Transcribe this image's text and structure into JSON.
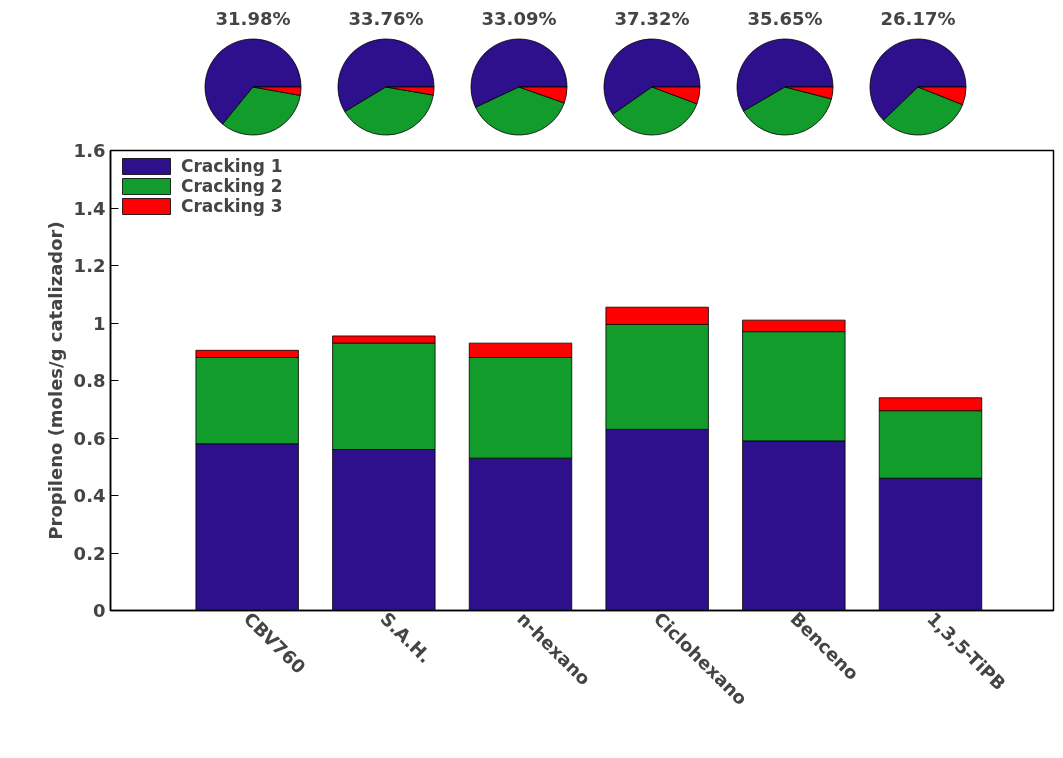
{
  "chart_data": [
    {
      "type": "pie",
      "title": "31.98%",
      "categories": [
        null,
        null,
        null
      ],
      "values": [
        64.1,
        33.1,
        2.8
      ],
      "colors": [
        "#2e0f8c",
        "#119c2c",
        "#ff0000"
      ]
    },
    {
      "type": "pie",
      "title": "33.76%",
      "categories": [
        null,
        null,
        null
      ],
      "values": [
        58.6,
        38.7,
        2.7
      ],
      "colors": [
        "#2e0f8c",
        "#119c2c",
        "#ff0000"
      ]
    },
    {
      "type": "pie",
      "title": "33.09%",
      "categories": [
        null,
        null,
        null
      ],
      "values": [
        57.0,
        37.6,
        5.4
      ],
      "colors": [
        "#2e0f8c",
        "#119c2c",
        "#ff0000"
      ]
    },
    {
      "type": "pie",
      "title": "37.32%",
      "categories": [
        null,
        null,
        null
      ],
      "values": [
        59.7,
        34.6,
        5.7
      ],
      "colors": [
        "#2e0f8c",
        "#119c2c",
        "#ff0000"
      ]
    },
    {
      "type": "pie",
      "title": "35.65%",
      "categories": [
        null,
        null,
        null
      ],
      "values": [
        58.4,
        37.6,
        4.0
      ],
      "colors": [
        "#2e0f8c",
        "#119c2c",
        "#ff0000"
      ]
    },
    {
      "type": "pie",
      "title": "26.17%",
      "categories": [
        null,
        null,
        null
      ],
      "values": [
        62.2,
        31.8,
        6.0
      ],
      "colors": [
        "#2e0f8c",
        "#119c2c",
        "#ff0000"
      ]
    },
    {
      "type": "bar",
      "stacked": true,
      "ylabel": "Propileno (moles/g catalizador)",
      "categories": [
        "CBV760",
        "S.A.H.",
        "n-hexano",
        "Ciclohexano",
        "Benceno",
        "1,3,5-TiPB"
      ],
      "series": [
        {
          "name": "Cracking 1",
          "color": "#2e0f8c",
          "values": [
            0.58,
            0.56,
            0.53,
            0.63,
            0.59,
            0.46
          ]
        },
        {
          "name": "Cracking 2",
          "color": "#119c2c",
          "values": [
            0.3,
            0.37,
            0.35,
            0.365,
            0.38,
            0.235
          ]
        },
        {
          "name": "Cracking 3",
          "color": "#ff0000",
          "values": [
            0.025,
            0.025,
            0.05,
            0.06,
            0.04,
            0.045
          ]
        }
      ],
      "ylim": [
        0,
        1.6
      ],
      "yticks": [
        0,
        0.2,
        0.4,
        0.6,
        0.8,
        1,
        1.2,
        1.4,
        1.6
      ],
      "grid": false,
      "legend": "top left"
    }
  ]
}
